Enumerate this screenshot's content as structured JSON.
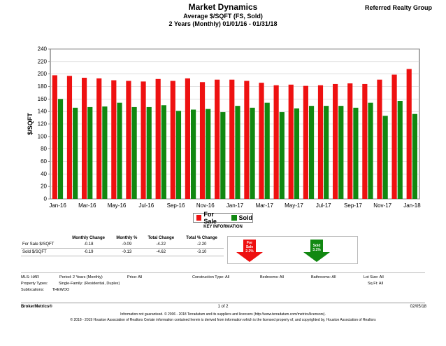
{
  "header": {
    "title": "Market Dynamics",
    "subtitle": "Average $/SQFT (FS, Sold)",
    "range": "2 Years (Monthly) 01/01/16 - 01/31/18",
    "brand": "Referred Realty Group"
  },
  "chart_data": {
    "type": "bar",
    "ylabel": "$/SQFT",
    "ylim": [
      0,
      240
    ],
    "yticks": [
      0,
      20,
      40,
      60,
      80,
      100,
      120,
      140,
      160,
      180,
      200,
      220,
      240
    ],
    "categories": [
      "Jan-16",
      "Feb-16",
      "Mar-16",
      "Apr-16",
      "May-16",
      "Jun-16",
      "Jul-16",
      "Aug-16",
      "Sep-16",
      "Oct-16",
      "Nov-16",
      "Dec-16",
      "Jan-17",
      "Feb-17",
      "Mar-17",
      "Apr-17",
      "May-17",
      "Jun-17",
      "Jul-17",
      "Aug-17",
      "Sep-17",
      "Oct-17",
      "Nov-17",
      "Dec-17",
      "Jan-18"
    ],
    "tick_labels": [
      "Jan-16",
      "Mar-16",
      "May-16",
      "Jul-16",
      "Sep-16",
      "Nov-16",
      "Jan-17",
      "Mar-17",
      "May-17",
      "Jul-17",
      "Sep-17",
      "Nov-17",
      "Jan-18"
    ],
    "series": [
      {
        "name": "For Sale",
        "color": "#ee1111",
        "values": [
          198,
          197,
          194,
          193,
          190,
          189,
          188,
          192,
          189,
          193,
          187,
          191,
          191,
          189,
          186,
          182,
          183,
          181,
          182,
          184,
          185,
          184,
          191,
          199,
          208
        ]
      },
      {
        "name": "Sold",
        "color": "#118811",
        "values": [
          160,
          146,
          147,
          148,
          154,
          147,
          147,
          150,
          141,
          143,
          144,
          139,
          149,
          146,
          154,
          139,
          145,
          149,
          149,
          149,
          146,
          154,
          133,
          157,
          136
        ]
      }
    ],
    "grid": true,
    "legend_position": "bottom"
  },
  "key_info": {
    "title": "KEY INFORMATION",
    "headers": [
      "",
      "Monthly Change",
      "Monthly %",
      "Total Change",
      "Total % Change"
    ],
    "rows": [
      [
        "For Sale $/SQFT",
        "-0.18",
        "-0.09",
        "-4.22",
        "-2.20"
      ],
      [
        "Sold $/SQFT",
        "-0.19",
        "-0.13",
        "-4.62",
        "-3.10"
      ]
    ],
    "forsale_arrow": {
      "line1": "For",
      "line2": "Sale",
      "line3": "2.2%"
    },
    "sold_arrow": {
      "line1": "Sold",
      "line2": "3.1%"
    }
  },
  "criteria": {
    "mls_label": "MLS:",
    "mls": "HAR",
    "period_label": "Period:",
    "period": "2 Years (Monthly)",
    "price_label": "Price:",
    "price": "All",
    "construction_label": "Construction Type:",
    "construction": "All",
    "bedrooms_label": "Bedrooms:",
    "bedrooms": "All",
    "bathrooms_label": "Bathrooms:",
    "bathrooms": "All",
    "lotsize_label": "Lot Size:",
    "lotsize": "All",
    "proptypes_label": "Property Types:",
    "proptypes": "Single-Family: (Residential, Duplex)",
    "sqft_label": "Sq Ft:",
    "sqft": "All",
    "subloc_label": "Sublocations:",
    "subloc": "THEWOO"
  },
  "footer": {
    "left": "BrokerMetrics®",
    "page": "1 of 2",
    "date": "02/05/18",
    "disclaimer1": "Information not guaranteed. © 2006 - 2018 Terradatum and its suppliers and licensors (http://www.terradatum.com/metrics/licensors).",
    "disclaimer2": "© 2018 - 2019 Houston Association of Realtors Certain information contained herein is derived from information which is the licensed property of, and copyrighted by, Houston Association of Realtors"
  }
}
